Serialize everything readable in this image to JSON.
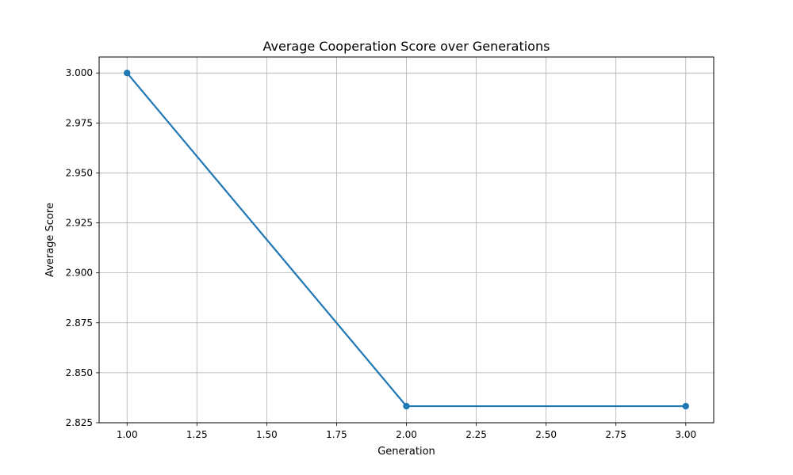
{
  "chart_data": {
    "type": "line",
    "title": "Average Cooperation Score over Generations",
    "xlabel": "Generation",
    "ylabel": "Average Score",
    "xlim": [
      0.9,
      3.1
    ],
    "ylim": [
      2.825,
      3.008
    ],
    "x_ticks": [
      "1.00",
      "1.25",
      "1.50",
      "1.75",
      "2.00",
      "2.25",
      "2.50",
      "2.75",
      "3.00"
    ],
    "y_ticks": [
      "2.825",
      "2.850",
      "2.875",
      "2.900",
      "2.925",
      "2.950",
      "2.975",
      "3.000"
    ],
    "grid": true,
    "series": [
      {
        "x": [
          1,
          2,
          3
        ],
        "y": [
          3.0,
          2.8333,
          2.8333
        ],
        "color": "#1f77b4",
        "marker": "circle"
      }
    ]
  }
}
